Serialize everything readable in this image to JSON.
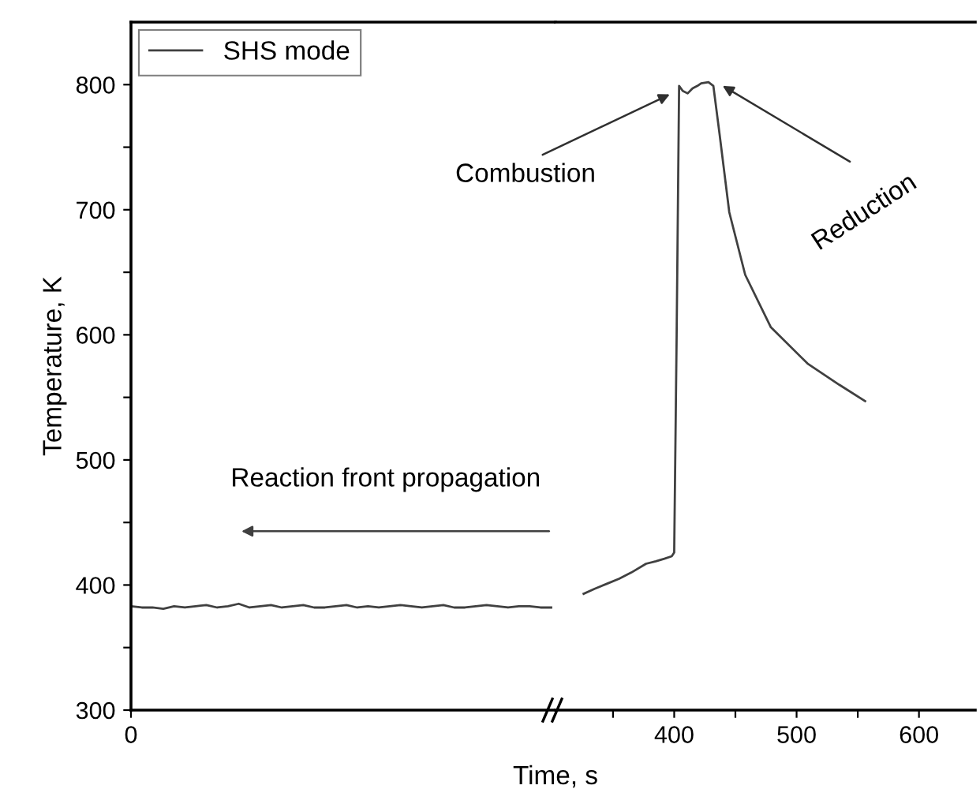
{
  "chart_data": [
    {
      "type": "line",
      "ylabel": "Temperature, K",
      "categories": [
        "0",
        null,
        null,
        null,
        null,
        null,
        null,
        null,
        null,
        null,
        null,
        null,
        null,
        null,
        null,
        null,
        null,
        null,
        null,
        null,
        null,
        null,
        null,
        null,
        null,
        null,
        null,
        null,
        null,
        null,
        null,
        null,
        null,
        null,
        null,
        null,
        null,
        null,
        null,
        null
      ],
      "series": [
        {
          "name": "SHS mode",
          "color": "#404040",
          "values": [
            383,
            382,
            382,
            381,
            383,
            382,
            383,
            384,
            382,
            383,
            385,
            382,
            383,
            384,
            382,
            383,
            384,
            382,
            382,
            383,
            384,
            382,
            383,
            382,
            383,
            384,
            383,
            382,
            383,
            384,
            382,
            382,
            383,
            384,
            383,
            382,
            383,
            383,
            382,
            382
          ]
        }
      ],
      "ylim": [
        300,
        850
      ],
      "yticks": [
        300,
        {
          "value": 350,
          "label": null
        },
        400,
        {
          "value": 450,
          "label": null
        },
        500,
        {
          "value": 550,
          "label": null
        },
        600,
        {
          "value": 650,
          "label": null
        },
        700,
        {
          "value": 750,
          "label": null
        },
        800
      ],
      "legend": "top left",
      "annotations": [
        "Reaction front propagation"
      ]
    },
    {
      "type": "line",
      "xlabel": "Time, s",
      "series": [
        {
          "color": "#404040",
          "x": [
            326,
            335,
            345,
            355,
            365,
            377,
            385,
            392,
            398,
            400,
            402,
            404,
            407,
            411,
            415,
            419,
            422,
            428,
            432,
            437,
            445,
            458,
            479,
            509,
            535,
            556
          ],
          "values": [
            393,
            397,
            401,
            405,
            410,
            417,
            419,
            421,
            423,
            426,
            600,
            799,
            795,
            793,
            797,
            799,
            801,
            802,
            799,
            761,
            698,
            648,
            606,
            577,
            560,
            547
          ]
        }
      ],
      "xlim": [
        303,
        646
      ],
      "xticks": [
        {
          "value": 350,
          "label": null
        },
        400,
        {
          "value": 450,
          "label": null
        },
        500,
        {
          "value": 550,
          "label": null
        },
        600
      ],
      "ylim": [
        300,
        850
      ],
      "tick_labels": "x",
      "annotations": [
        {
          "text": "Combustion",
          "x": 398,
          "y": 793
        },
        {
          "text": "Reduction",
          "x": 438,
          "y": 800
        }
      ]
    }
  ]
}
